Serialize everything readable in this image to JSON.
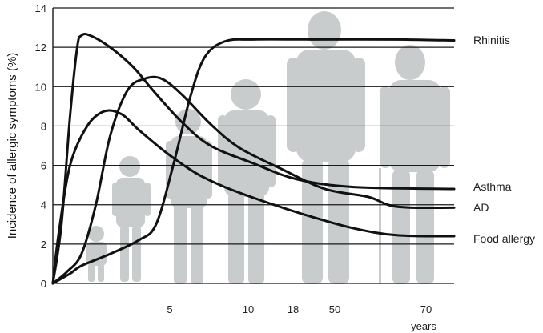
{
  "chart_data": {
    "type": "line",
    "title": "",
    "ylabel": "Incidence of allergic symptoms (%)",
    "xlabel": "years",
    "ylim": [
      0,
      14
    ],
    "yticks": [
      0,
      2,
      4,
      6,
      8,
      10,
      12,
      14
    ],
    "xticks": [
      "5",
      "10",
      "18",
      "50",
      "70"
    ],
    "grid": true,
    "series": [
      {
        "name": "Rhinitis",
        "points": [
          [
            0,
            0
          ],
          [
            0.6,
            0.5
          ],
          [
            1.0,
            0.9
          ],
          [
            2.0,
            1.5
          ],
          [
            3.0,
            2.2
          ],
          [
            3.6,
            3.0
          ],
          [
            4.2,
            6.0
          ],
          [
            4.8,
            9.5
          ],
          [
            5.3,
            11.5
          ],
          [
            6.0,
            12.3
          ],
          [
            7.0,
            12.4
          ],
          [
            9.0,
            12.4
          ],
          [
            12.0,
            12.4
          ],
          [
            14.0,
            12.35
          ]
        ]
      },
      {
        "name": "Asthma",
        "points": [
          [
            0,
            0
          ],
          [
            0.3,
            3.0
          ],
          [
            0.6,
            8.5
          ],
          [
            0.85,
            12.0
          ],
          [
            1.0,
            12.6
          ],
          [
            1.3,
            12.6
          ],
          [
            2.0,
            12.0
          ],
          [
            2.8,
            11.0
          ],
          [
            3.5,
            9.8
          ],
          [
            4.5,
            8.2
          ],
          [
            5.5,
            7.0
          ],
          [
            7.0,
            6.1
          ],
          [
            8.5,
            5.3
          ],
          [
            10.5,
            4.9
          ],
          [
            14.0,
            4.8
          ]
        ]
      },
      {
        "name": "AD",
        "points": [
          [
            0,
            0
          ],
          [
            0.5,
            0.6
          ],
          [
            1.0,
            1.5
          ],
          [
            1.5,
            4.0
          ],
          [
            2.0,
            7.5
          ],
          [
            2.6,
            9.8
          ],
          [
            3.2,
            10.4
          ],
          [
            3.8,
            10.4
          ],
          [
            4.5,
            9.6
          ],
          [
            5.5,
            8.1
          ],
          [
            6.5,
            6.9
          ],
          [
            8.0,
            5.8
          ],
          [
            9.5,
            4.8
          ],
          [
            11.0,
            4.4
          ],
          [
            12.0,
            3.9
          ],
          [
            14.0,
            3.85
          ]
        ]
      },
      {
        "name": "Food allergy",
        "points": [
          [
            0,
            0
          ],
          [
            0.2,
            2.5
          ],
          [
            0.6,
            6.0
          ],
          [
            1.2,
            8.0
          ],
          [
            1.8,
            8.75
          ],
          [
            2.4,
            8.6
          ],
          [
            3.0,
            7.8
          ],
          [
            4.0,
            6.6
          ],
          [
            5.0,
            5.6
          ],
          [
            6.0,
            4.9
          ],
          [
            7.5,
            4.1
          ],
          [
            9.0,
            3.4
          ],
          [
            10.5,
            2.8
          ],
          [
            12.0,
            2.45
          ],
          [
            14.0,
            2.4
          ]
        ]
      }
    ]
  }
}
